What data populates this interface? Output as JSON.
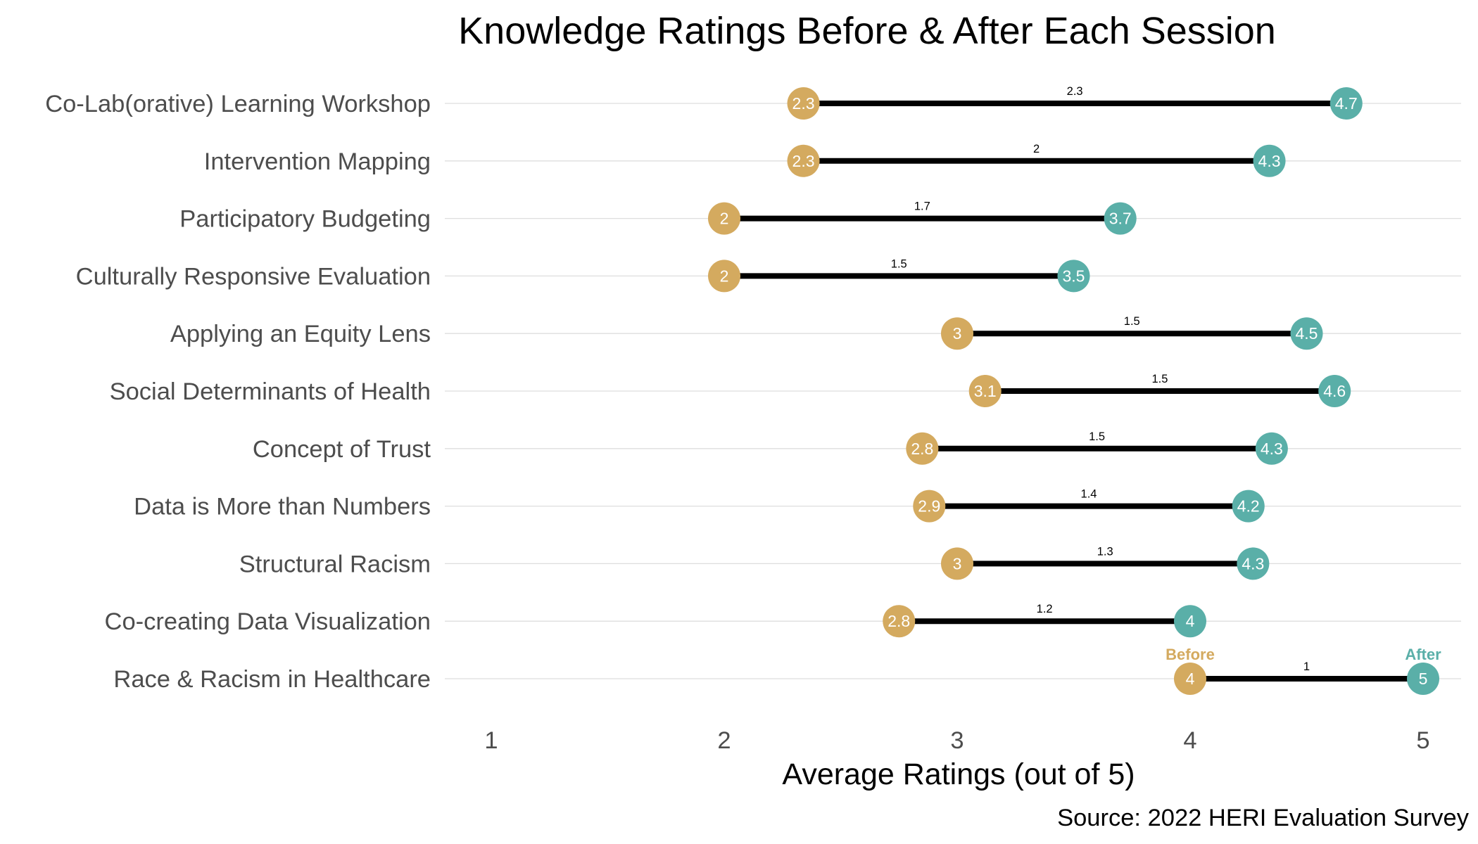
{
  "chart_data": {
    "type": "dumbbell",
    "title": "Knowledge Ratings Before & After Each Session",
    "xlabel": "Average Ratings (out of 5)",
    "ylabel": "",
    "caption": "Source: 2022 HERI Evaluation Survey",
    "xlim": [
      1,
      5
    ],
    "x_ticks": [
      "1",
      "2",
      "3",
      "4",
      "5"
    ],
    "grid": "horizontal",
    "colors": {
      "before": "#d4aa5f",
      "after": "#5aafa8",
      "segment": "#000000"
    },
    "series": [
      {
        "name": "Before",
        "color": "#d4aa5f"
      },
      {
        "name": "After",
        "color": "#5aafa8"
      }
    ],
    "rows": [
      {
        "category": "Co-Lab(orative) Learning Workshop",
        "before": 2.34,
        "after": 4.67,
        "before_label": "2.3",
        "after_label": "4.7",
        "diff_label": "2.3"
      },
      {
        "category": "Intervention Mapping",
        "before": 2.34,
        "after": 4.34,
        "before_label": "2.3",
        "after_label": "4.3",
        "diff_label": "2"
      },
      {
        "category": "Participatory Budgeting",
        "before": 2.0,
        "after": 3.7,
        "before_label": "2",
        "after_label": "3.7",
        "diff_label": "1.7"
      },
      {
        "category": "Culturally Responsive Evaluation",
        "before": 2.0,
        "after": 3.5,
        "before_label": "2",
        "after_label": "3.5",
        "diff_label": "1.5"
      },
      {
        "category": "Applying an Equity Lens",
        "before": 3.0,
        "after": 4.5,
        "before_label": "3",
        "after_label": "4.5",
        "diff_label": "1.5"
      },
      {
        "category": "Social Determinants of Health",
        "before": 3.12,
        "after": 4.62,
        "before_label": "3.1",
        "after_label": "4.6",
        "diff_label": "1.5"
      },
      {
        "category": "Concept of Trust",
        "before": 2.85,
        "after": 4.35,
        "before_label": "2.8",
        "after_label": "4.3",
        "diff_label": "1.5"
      },
      {
        "category": "Data is More than Numbers",
        "before": 2.88,
        "after": 4.25,
        "before_label": "2.9",
        "after_label": "4.2",
        "diff_label": "1.4"
      },
      {
        "category": "Structural Racism",
        "before": 3.0,
        "after": 4.27,
        "before_label": "3",
        "after_label": "4.3",
        "diff_label": "1.3"
      },
      {
        "category": "Co-creating Data Visualization",
        "before": 2.75,
        "after": 4.0,
        "before_label": "2.8",
        "after_label": "4",
        "diff_label": "1.2"
      },
      {
        "category": "Race & Racism in Healthcare",
        "before": 4.0,
        "after": 5.0,
        "before_label": "4",
        "after_label": "5",
        "diff_label": "1"
      }
    ],
    "annotations": [
      {
        "text": "Before",
        "row": "Race & Racism in Healthcare",
        "series": "before"
      },
      {
        "text": "After",
        "row": "Race & Racism in Healthcare",
        "series": "after"
      }
    ]
  }
}
